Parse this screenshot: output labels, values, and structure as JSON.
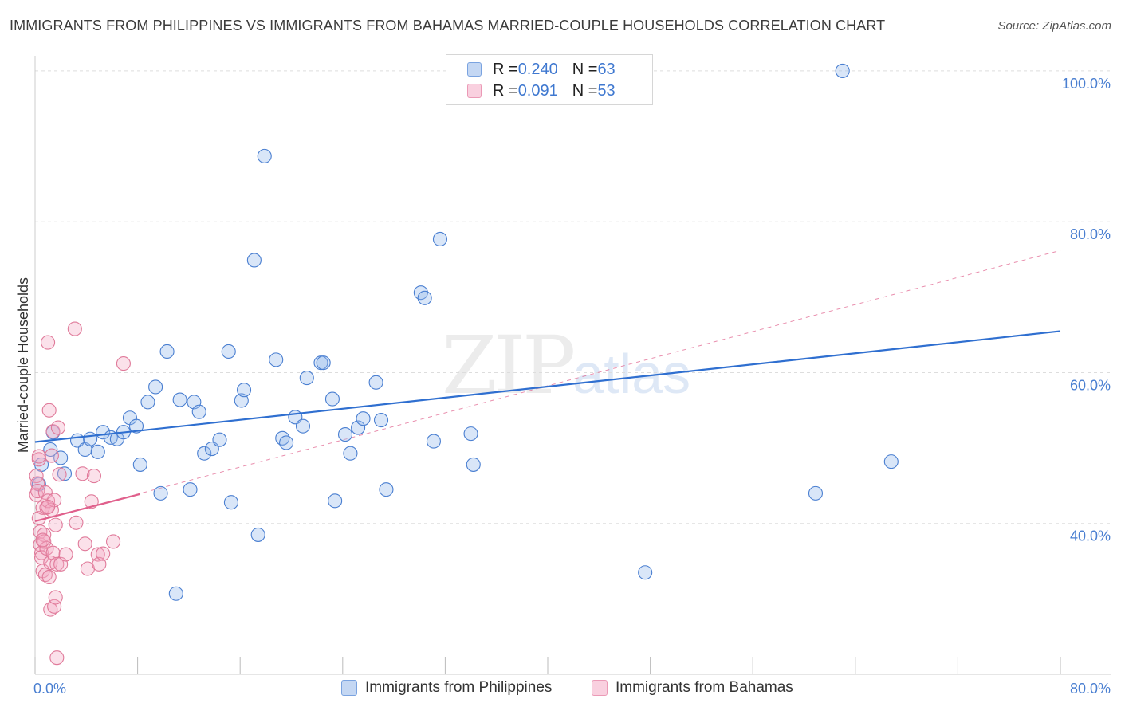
{
  "title": "IMMIGRANTS FROM PHILIPPINES VS IMMIGRANTS FROM BAHAMAS MARRIED-COUPLE HOUSEHOLDS CORRELATION CHART",
  "source": "Source: ZipAtlas.com",
  "watermark": {
    "zip": "ZIP",
    "atlas": "atlas"
  },
  "colors": {
    "blue": "#4a7fd1",
    "blue_fill": "rgba(147,183,234,0.35)",
    "blue_line": "#2f6fd0",
    "pink": "#e07a9a",
    "pink_fill": "rgba(244,170,196,0.35)",
    "pink_line": "#e0608c",
    "grid": "#dddddd"
  },
  "legend": {
    "rows": [
      {
        "r_label": "R = ",
        "r_value": "0.240",
        "n_label": "N = ",
        "n_value": "63"
      },
      {
        "r_label": "R = ",
        "r_value": "0.091",
        "n_label": "N = ",
        "n_value": "53"
      }
    ]
  },
  "bottom_legend": [
    "Immigrants from Philippines",
    "Immigrants from Bahamas"
  ],
  "chart_data": {
    "type": "scatter",
    "title": "IMMIGRANTS FROM PHILIPPINES VS IMMIGRANTS FROM BAHAMAS MARRIED-COUPLE HOUSEHOLDS CORRELATION CHART",
    "xlabel": "",
    "ylabel": "Married-couple Households",
    "xlim": [
      0,
      80
    ],
    "ylim": [
      20,
      102
    ],
    "x_tick_labels": [
      "0.0%",
      "80.0%"
    ],
    "y_ticks": [
      40,
      60,
      80,
      100
    ],
    "y_tick_labels": [
      "40.0%",
      "60.0%",
      "80.0%",
      "100.0%"
    ],
    "grid": true,
    "legend_position": "top-center",
    "series": [
      {
        "name": "Immigrants from Philippines",
        "r": 0.24,
        "n": 63,
        "trend": {
          "x0": 0,
          "y0": 50.8,
          "x1": 80,
          "y1": 65.5
        },
        "points": [
          [
            0.3,
            45.2
          ],
          [
            0.5,
            47.8
          ],
          [
            1.2,
            49.8
          ],
          [
            1.4,
            52.1
          ],
          [
            2.0,
            48.7
          ],
          [
            2.3,
            46.6
          ],
          [
            3.3,
            51.0
          ],
          [
            3.9,
            49.8
          ],
          [
            4.3,
            51.2
          ],
          [
            4.9,
            49.5
          ],
          [
            5.3,
            52.1
          ],
          [
            5.9,
            51.4
          ],
          [
            6.4,
            51.2
          ],
          [
            6.9,
            52.1
          ],
          [
            7.4,
            54.0
          ],
          [
            7.9,
            52.9
          ],
          [
            8.2,
            47.8
          ],
          [
            8.8,
            56.1
          ],
          [
            9.4,
            58.1
          ],
          [
            10.3,
            62.8
          ],
          [
            11.3,
            56.4
          ],
          [
            12.1,
            44.5
          ],
          [
            12.4,
            56.1
          ],
          [
            12.8,
            54.8
          ],
          [
            13.2,
            49.3
          ],
          [
            13.8,
            49.9
          ],
          [
            14.4,
            51.1
          ],
          [
            15.1,
            62.8
          ],
          [
            15.3,
            42.8
          ],
          [
            16.1,
            56.3
          ],
          [
            16.3,
            57.7
          ],
          [
            17.1,
            74.9
          ],
          [
            17.4,
            38.5
          ],
          [
            17.9,
            88.7
          ],
          [
            18.8,
            61.7
          ],
          [
            19.3,
            51.3
          ],
          [
            19.6,
            50.7
          ],
          [
            20.3,
            54.1
          ],
          [
            20.9,
            52.9
          ],
          [
            21.2,
            59.3
          ],
          [
            22.3,
            61.3
          ],
          [
            22.5,
            61.3
          ],
          [
            23.2,
            56.5
          ],
          [
            23.4,
            43.0
          ],
          [
            24.2,
            51.8
          ],
          [
            24.6,
            49.3
          ],
          [
            25.2,
            52.7
          ],
          [
            25.6,
            53.9
          ],
          [
            26.6,
            58.7
          ],
          [
            27.0,
            53.7
          ],
          [
            27.4,
            44.5
          ],
          [
            30.1,
            70.6
          ],
          [
            30.4,
            69.9
          ],
          [
            31.1,
            50.9
          ],
          [
            31.6,
            77.7
          ],
          [
            34.0,
            51.9
          ],
          [
            34.2,
            47.8
          ],
          [
            47.6,
            33.5
          ],
          [
            60.9,
            44.0
          ],
          [
            63.0,
            100.0
          ],
          [
            66.8,
            48.2
          ],
          [
            11.0,
            30.7
          ],
          [
            9.8,
            44.0
          ]
        ]
      },
      {
        "name": "Immigrants from Bahamas",
        "r": 0.091,
        "n": 53,
        "trend": {
          "x0": 0,
          "y0": 40.3,
          "x1": 8.2,
          "y1": 43.9
        },
        "trend_extended": {
          "x0": 0,
          "y0": 40.3,
          "x1": 80,
          "y1": 76.2
        },
        "points": [
          [
            0.1,
            46.3
          ],
          [
            0.1,
            43.8
          ],
          [
            0.2,
            45.3
          ],
          [
            0.2,
            44.3
          ],
          [
            0.3,
            48.5
          ],
          [
            0.3,
            40.7
          ],
          [
            0.4,
            38.9
          ],
          [
            0.4,
            37.2
          ],
          [
            0.5,
            36.1
          ],
          [
            0.5,
            35.5
          ],
          [
            0.6,
            33.7
          ],
          [
            0.6,
            42.1
          ],
          [
            0.7,
            38.5
          ],
          [
            0.7,
            37.6
          ],
          [
            0.8,
            33.2
          ],
          [
            0.8,
            44.1
          ],
          [
            0.9,
            42.1
          ],
          [
            0.9,
            36.7
          ],
          [
            1.0,
            43.0
          ],
          [
            1.1,
            32.9
          ],
          [
            1.1,
            55.0
          ],
          [
            1.2,
            28.6
          ],
          [
            1.2,
            34.8
          ],
          [
            1.3,
            41.8
          ],
          [
            1.3,
            49.0
          ],
          [
            1.4,
            36.1
          ],
          [
            1.4,
            52.2
          ],
          [
            1.5,
            29.0
          ],
          [
            1.5,
            43.1
          ],
          [
            1.6,
            30.2
          ],
          [
            1.6,
            39.8
          ],
          [
            1.7,
            22.2
          ],
          [
            1.7,
            34.6
          ],
          [
            1.8,
            52.7
          ],
          [
            1.9,
            46.5
          ],
          [
            2.0,
            34.6
          ],
          [
            2.4,
            35.9
          ],
          [
            1.0,
            64.0
          ],
          [
            3.1,
            65.8
          ],
          [
            3.2,
            40.1
          ],
          [
            3.7,
            46.6
          ],
          [
            3.9,
            37.3
          ],
          [
            4.1,
            34.0
          ],
          [
            4.4,
            42.9
          ],
          [
            4.6,
            46.3
          ],
          [
            4.9,
            35.9
          ],
          [
            5.0,
            34.6
          ],
          [
            5.3,
            36.0
          ],
          [
            6.1,
            37.6
          ],
          [
            6.9,
            61.2
          ],
          [
            0.3,
            48.9
          ],
          [
            0.6,
            37.8
          ],
          [
            1.0,
            42.2
          ]
        ]
      }
    ]
  }
}
